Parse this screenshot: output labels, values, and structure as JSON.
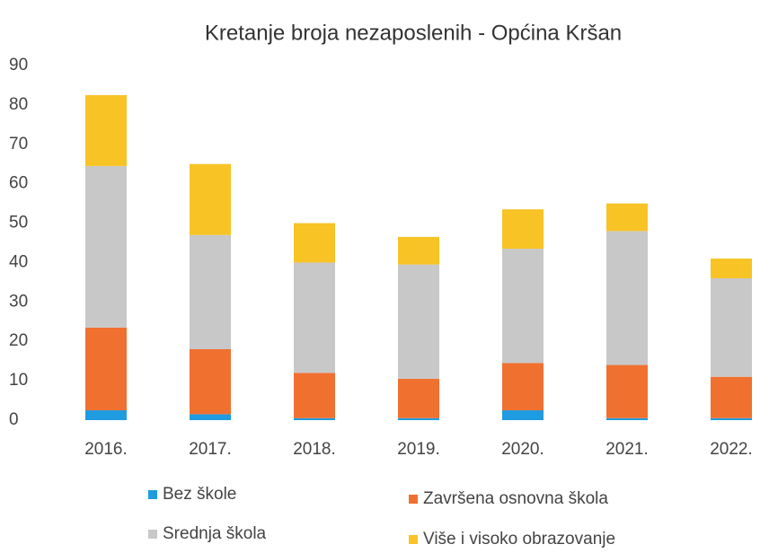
{
  "chart_data": {
    "type": "stacked_bar",
    "title": "Kretanje broja nezaposlenih - Općina Kršan",
    "categories": [
      "2016.",
      "2017.",
      "2018.",
      "2019.",
      "2020.",
      "2021.",
      "2022."
    ],
    "series": [
      {
        "name": "Bez škole",
        "color": "#1f9be0",
        "values": [
          2.5,
          1.5,
          0.5,
          0.5,
          2.5,
          0.5,
          0.5
        ]
      },
      {
        "name": "Završena osnovna škola",
        "color": "#f07030",
        "values": [
          21,
          16.5,
          11.5,
          10,
          12,
          13.5,
          10.5
        ]
      },
      {
        "name": "Srednja škola",
        "color": "#c8c8c8",
        "values": [
          41,
          29,
          28,
          29,
          29,
          34,
          25
        ]
      },
      {
        "name": "Više i visoko obrazovanje",
        "color": "#f7c325",
        "values": [
          18,
          18,
          10,
          7,
          10,
          7,
          5
        ]
      }
    ],
    "ylim": [
      0,
      90
    ],
    "yticks": [
      0,
      10,
      20,
      30,
      40,
      50,
      60,
      70,
      80,
      90
    ],
    "grid": false
  }
}
